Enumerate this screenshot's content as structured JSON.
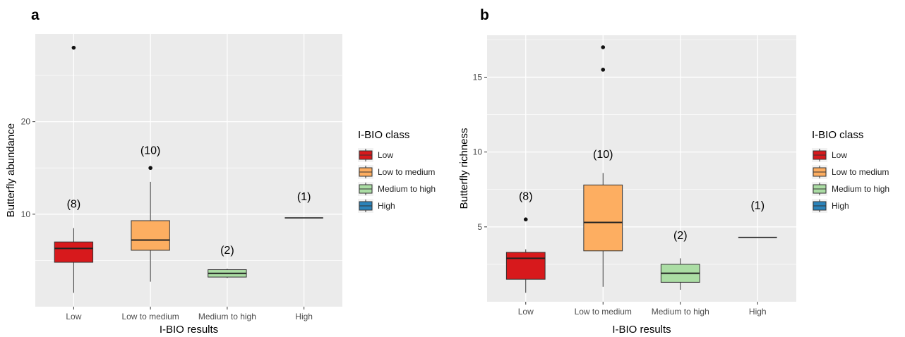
{
  "chart_data": [
    {
      "type": "box",
      "panel": "a",
      "xlabel": "I-BIO results",
      "ylabel": "Butterfly abundance",
      "categories": [
        "Low",
        "Low to medium",
        "Medium to high",
        "High"
      ],
      "ylim": [
        0,
        29.5
      ],
      "yticks": [
        10,
        20
      ],
      "grid": true,
      "legend": {
        "title": "I-BIO class",
        "placement": "right",
        "entries": [
          "Low",
          "Low to medium",
          "Medium to high",
          "High"
        ]
      },
      "colors": [
        "#d7191c",
        "#fdae61",
        "#abdda4",
        "#2b83ba"
      ],
      "boxes": [
        {
          "category": "Low",
          "min": 1.5,
          "q1": 4.8,
          "median": 6.3,
          "q3": 7.0,
          "max": 8.5,
          "outliers": [
            28
          ],
          "n_label": "(8)",
          "n_label_y": 10.7
        },
        {
          "category": "Low to medium",
          "min": 2.7,
          "q1": 6.1,
          "median": 7.2,
          "q3": 9.3,
          "max": 13.5,
          "outliers": [
            15
          ],
          "n_label": "(10)",
          "n_label_y": 16.5
        },
        {
          "category": "Medium to high",
          "min": 3.1,
          "q1": 3.2,
          "median": 3.6,
          "q3": 4.0,
          "max": 4.1,
          "outliers": [],
          "n_label": "(2)",
          "n_label_y": 5.7
        },
        {
          "category": "High",
          "min": 9.6,
          "q1": 9.6,
          "median": 9.6,
          "q3": 9.6,
          "max": 9.6,
          "outliers": [],
          "n_label": "(1)",
          "n_label_y": 11.5
        }
      ]
    },
    {
      "type": "box",
      "panel": "b",
      "xlabel": "I-BIO results",
      "ylabel": "Butterfly richness",
      "categories": [
        "Low",
        "Low to medium",
        "Medium to high",
        "High"
      ],
      "ylim": [
        0,
        17.8
      ],
      "yticks": [
        5,
        10,
        15
      ],
      "grid": true,
      "legend": {
        "title": "I-BIO class",
        "placement": "right",
        "entries": [
          "Low",
          "Low to medium",
          "Medium to high",
          "High"
        ]
      },
      "colors": [
        "#d7191c",
        "#fdae61",
        "#abdda4",
        "#2b83ba"
      ],
      "boxes": [
        {
          "category": "Low",
          "min": 0.6,
          "q1": 1.5,
          "median": 2.9,
          "q3": 3.3,
          "max": 3.5,
          "outliers": [
            5.5
          ],
          "n_label": "(8)",
          "n_label_y": 6.8
        },
        {
          "category": "Low to medium",
          "min": 1.0,
          "q1": 3.4,
          "median": 5.3,
          "q3": 7.8,
          "max": 8.6,
          "outliers": [
            15.5,
            17
          ],
          "n_label": "(10)",
          "n_label_y": 9.6
        },
        {
          "category": "Medium to high",
          "min": 0.8,
          "q1": 1.3,
          "median": 1.9,
          "q3": 2.5,
          "max": 2.9,
          "outliers": [],
          "n_label": "(2)",
          "n_label_y": 4.2
        },
        {
          "category": "High",
          "min": 4.3,
          "q1": 4.3,
          "median": 4.3,
          "q3": 4.3,
          "max": 4.3,
          "outliers": [],
          "n_label": "(1)",
          "n_label_y": 6.2
        }
      ]
    }
  ]
}
